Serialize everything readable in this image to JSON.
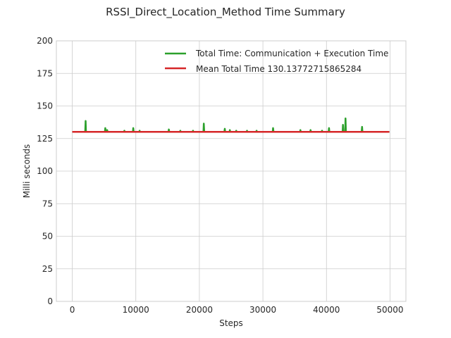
{
  "chart_data": {
    "type": "line",
    "title": "RSSI_Direct_Location_Method Time Summary",
    "xlabel": "Steps",
    "ylabel": "Milli seconds",
    "xlim": [
      -2500,
      52500
    ],
    "ylim": [
      0,
      200
    ],
    "xticks": [
      0,
      10000,
      20000,
      30000,
      40000,
      50000
    ],
    "yticks": [
      0,
      25,
      50,
      75,
      100,
      125,
      150,
      175,
      200
    ],
    "grid": true,
    "legend_position": "top-right",
    "baseline": 130.1,
    "spikes": [
      {
        "x": 2100,
        "y": 138.5
      },
      {
        "x": 5200,
        "y": 133
      },
      {
        "x": 5500,
        "y": 131.5
      },
      {
        "x": 8200,
        "y": 131
      },
      {
        "x": 9600,
        "y": 133
      },
      {
        "x": 10600,
        "y": 131
      },
      {
        "x": 15200,
        "y": 132
      },
      {
        "x": 17000,
        "y": 131
      },
      {
        "x": 19000,
        "y": 131
      },
      {
        "x": 20700,
        "y": 136.5
      },
      {
        "x": 24000,
        "y": 132.5
      },
      {
        "x": 24800,
        "y": 131.5
      },
      {
        "x": 25800,
        "y": 131
      },
      {
        "x": 27500,
        "y": 131
      },
      {
        "x": 29000,
        "y": 131
      },
      {
        "x": 31600,
        "y": 133
      },
      {
        "x": 35900,
        "y": 131.5
      },
      {
        "x": 37500,
        "y": 131.5
      },
      {
        "x": 39300,
        "y": 131
      },
      {
        "x": 40400,
        "y": 133
      },
      {
        "x": 42600,
        "y": 135.5
      },
      {
        "x": 43000,
        "y": 140.5
      },
      {
        "x": 45600,
        "y": 134
      }
    ],
    "series": [
      {
        "name": "Total Time: Communication + Execution Time",
        "color": "#2ca02c",
        "range": [
          0,
          49900
        ]
      },
      {
        "name": "Mean Total Time 130.13772715865284",
        "color": "#d62728",
        "value": 130.13772715865284,
        "range": [
          0,
          49900
        ]
      }
    ]
  }
}
